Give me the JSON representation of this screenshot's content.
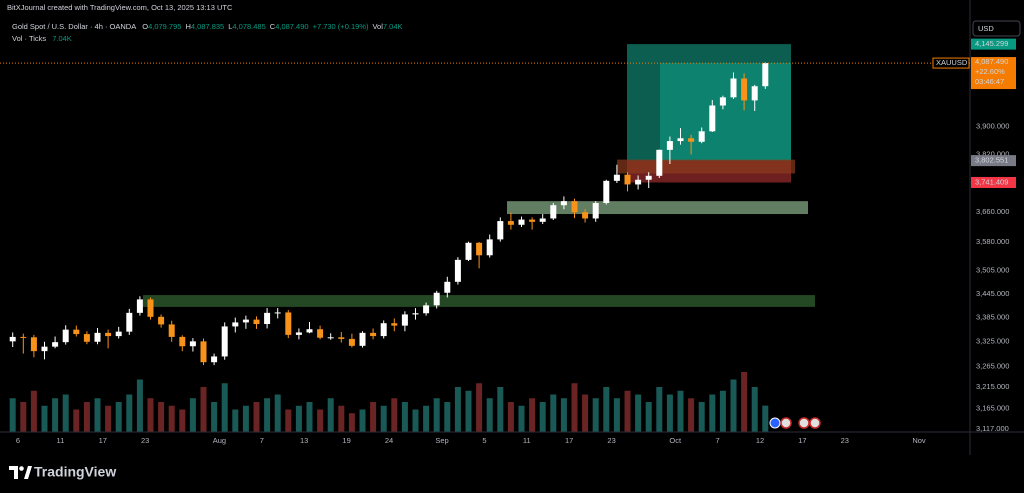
{
  "header": {
    "credit": "BitXJournal created with TradingView.com, Oct 13, 2025 13:13 UTC",
    "symbol": "Gold Spot / U.S. Dollar · 4h · OANDA",
    "quote": [
      {
        "k": "O",
        "v": "4,079.795"
      },
      {
        "k": "H",
        "v": "4,087.835"
      },
      {
        "k": "L",
        "v": "4,078.485"
      },
      {
        "k": "C",
        "v": "4,087.490"
      }
    ],
    "change": "+7.730 (+0.19%)",
    "vol_key": "Vol",
    "vol_value": "7.04K",
    "indicator": "Vol · Ticks",
    "indicator_value": "7.04K"
  },
  "currency": "USD",
  "footer": {
    "brand": "TradingView"
  },
  "chart_data": {
    "type": "candlestick",
    "up_color": "#ffffff",
    "down_color": "#f7931a",
    "volume_up_color": "#1d6a66",
    "volume_down_color": "#7d2a2a",
    "log_scale": true,
    "grid": false,
    "ylim": [
      3110,
      4283
    ],
    "yticks": [
      {
        "value": 3117,
        "label": "3,117.000"
      },
      {
        "value": 3165,
        "label": "3,165.000"
      },
      {
        "value": 3215,
        "label": "3,215.000"
      },
      {
        "value": 3265,
        "label": "3,265.000"
      },
      {
        "value": 3325,
        "label": "3,325.000"
      },
      {
        "value": 3385,
        "label": "3,385.000"
      },
      {
        "value": 3445,
        "label": "3,445.000"
      },
      {
        "value": 3505,
        "label": "3,505.000"
      },
      {
        "value": 3580,
        "label": "3,580.000"
      },
      {
        "value": 3660,
        "label": "3,660.000"
      },
      {
        "value": 3820,
        "label": "3,820.000"
      },
      {
        "value": 3900,
        "label": "3,900.000"
      }
    ],
    "categories": [
      null,
      "6",
      null,
      null,
      null,
      "11",
      null,
      null,
      null,
      "17",
      null,
      null,
      null,
      "23",
      null,
      null,
      null,
      null,
      null,
      null,
      "Aug",
      null,
      null,
      null,
      "7",
      null,
      null,
      null,
      "13",
      null,
      null,
      null,
      "19",
      null,
      null,
      null,
      "24",
      null,
      null,
      null,
      null,
      "Sep",
      null,
      null,
      null,
      "5",
      null,
      null,
      null,
      "11",
      null,
      null,
      null,
      "17",
      null,
      null,
      null,
      "23",
      null,
      null,
      null,
      null,
      null,
      "Oct",
      null,
      null,
      null,
      "7",
      null,
      null,
      null,
      "12",
      null,
      null,
      null,
      "17",
      null,
      null,
      null,
      "23",
      null,
      null,
      null,
      null,
      null,
      null,
      "Nov",
      null,
      null,
      null,
      null
    ],
    "open": [
      3326,
      3337,
      3336,
      3302,
      3313,
      3324,
      3355,
      3344,
      3325,
      3347,
      3339,
      3350,
      3397,
      3431,
      3387,
      3368,
      3337,
      3314,
      3326,
      3275,
      3289,
      3363,
      3373,
      3380,
      3369,
      3397,
      3398,
      3342,
      3348,
      3356,
      3335,
      3336,
      3332,
      3315,
      3347,
      3339,
      3371,
      3365,
      3393,
      3396,
      3416,
      3448,
      3476,
      3533,
      3578,
      3545,
      3587,
      3636,
      3626,
      3640,
      3634,
      3643,
      3679,
      3690,
      3660,
      3643,
      3685,
      3746,
      3763,
      3736,
      3749,
      3760,
      3833,
      3858,
      3866,
      3856,
      3886,
      3961,
      3985,
      4041,
      3976,
      4018,
      null,
      null,
      null,
      null,
      null,
      null,
      null,
      null,
      null,
      null,
      null,
      null,
      null,
      null,
      null,
      null,
      null,
      null,
      null
    ],
    "high": [
      3348,
      3345,
      3342,
      3325,
      3338,
      3366,
      3365,
      3351,
      3359,
      3355,
      3362,
      3407,
      3439,
      3436,
      3393,
      3377,
      3341,
      3334,
      3333,
      3296,
      3373,
      3385,
      3390,
      3388,
      3409,
      3409,
      3404,
      3358,
      3374,
      3365,
      3346,
      3349,
      3345,
      3351,
      3358,
      3378,
      3383,
      3401,
      3409,
      3423,
      3453,
      3489,
      3540,
      3581,
      3580,
      3600,
      3646,
      3659,
      3648,
      3646,
      3655,
      3685,
      3703,
      3697,
      3668,
      3690,
      3749,
      3791,
      3770,
      3761,
      3770,
      3834,
      3871,
      3895,
      3876,
      3897,
      3977,
      3990,
      4059,
      4056,
      4022,
      4090,
      null,
      null,
      null,
      null,
      null,
      null,
      null,
      null,
      null,
      null,
      null,
      null,
      null,
      null,
      null,
      null,
      null,
      null,
      null
    ],
    "low": [
      3312,
      3296,
      3287,
      3282,
      3309,
      3318,
      3338,
      3319,
      3319,
      3309,
      3333,
      3342,
      3390,
      3380,
      3360,
      3325,
      3302,
      3301,
      3268,
      3268,
      3281,
      3348,
      3357,
      3357,
      3358,
      3383,
      3334,
      3331,
      3346,
      3331,
      3330,
      3323,
      3311,
      3311,
      3331,
      3333,
      3351,
      3351,
      3380,
      3390,
      3408,
      3436,
      3469,
      3530,
      3511,
      3539,
      3581,
      3613,
      3620,
      3613,
      3628,
      3639,
      3668,
      3644,
      3632,
      3634,
      3681,
      3740,
      3717,
      3722,
      3726,
      3754,
      3793,
      3848,
      3820,
      3852,
      3884,
      3950,
      3980,
      3947,
      3945,
      4010,
      null,
      null,
      null,
      null,
      null,
      null,
      null,
      null,
      null,
      null,
      null,
      null,
      null,
      null,
      null,
      null,
      null,
      null,
      null
    ],
    "close": [
      3337,
      3336,
      3302,
      3313,
      3324,
      3355,
      3344,
      3325,
      3347,
      3339,
      3350,
      3397,
      3431,
      3387,
      3368,
      3337,
      3314,
      3326,
      3275,
      3289,
      3363,
      3373,
      3380,
      3369,
      3397,
      3398,
      3342,
      3348,
      3356,
      3335,
      3336,
      3332,
      3315,
      3347,
      3339,
      3371,
      3365,
      3393,
      3396,
      3416,
      3448,
      3476,
      3533,
      3578,
      3545,
      3587,
      3636,
      3626,
      3640,
      3634,
      3643,
      3679,
      3690,
      3660,
      3643,
      3685,
      3746,
      3763,
      3736,
      3749,
      3760,
      3833,
      3858,
      3866,
      3856,
      3886,
      3961,
      3985,
      4041,
      3976,
      4018,
      4087.49,
      null,
      null,
      null,
      null,
      null,
      null,
      null,
      null,
      null,
      null,
      null,
      null,
      null,
      null,
      null,
      null,
      null,
      null,
      null
    ],
    "volume": [
      9,
      8,
      11,
      7,
      9,
      10,
      6,
      8,
      9,
      7,
      8,
      10,
      14,
      9,
      8,
      7,
      6,
      9,
      12,
      8,
      13,
      6,
      7,
      8,
      9,
      10,
      6,
      7,
      8,
      6,
      9,
      7,
      5,
      6,
      8,
      7,
      9,
      8,
      6,
      7,
      9,
      8,
      12,
      11,
      13,
      9,
      12,
      8,
      7,
      9,
      8,
      10,
      9,
      13,
      10,
      9,
      12,
      9,
      11,
      10,
      8,
      12,
      10,
      11,
      9,
      8,
      10,
      11,
      14,
      16,
      12,
      7.04,
      null,
      null,
      null,
      null,
      null,
      null,
      null,
      null,
      null,
      null,
      null,
      null,
      null,
      null,
      null,
      null,
      null,
      null,
      null
    ],
    "zones": [
      {
        "top": 3442,
        "bottom": 3412,
        "color": "#2c5a2c"
      },
      {
        "top": 3690,
        "bottom": 3655,
        "color": "#7a9e7a"
      }
    ],
    "price_tags": [
      {
        "value": 4145.299,
        "label": "4,145.299",
        "color": "#089981"
      },
      {
        "value": 3802.551,
        "label": "3,802.551",
        "color": "#787b86"
      },
      {
        "value": 3741.409,
        "label": "3,741.409",
        "color": "#f23645"
      }
    ],
    "current": {
      "symbol": "XAUUSD",
      "value": 4087.49,
      "label": "4,087.490",
      "change": "+22.60%",
      "countdown": "03:46:47",
      "color": "#f57c00"
    }
  }
}
